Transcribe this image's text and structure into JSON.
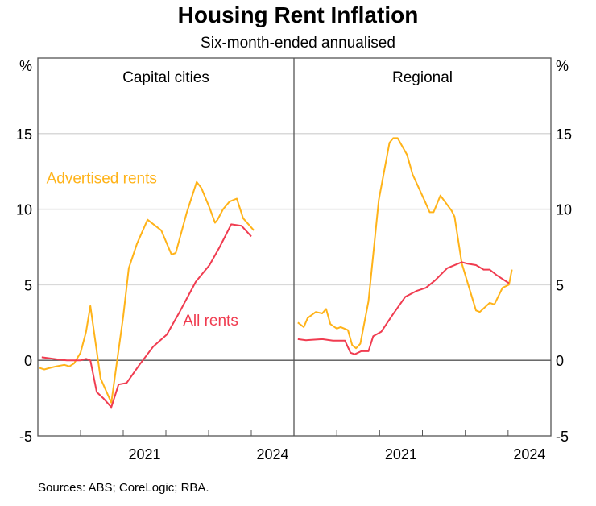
{
  "chart_data": {
    "type": "line",
    "title": "Housing Rent Inflation",
    "subtitle": "Six-month-ended annualised",
    "ylabel_left": "%",
    "ylabel_right": "%",
    "ylim": [
      -5,
      20
    ],
    "yticks": [
      -5,
      0,
      5,
      10,
      15
    ],
    "xlim": [
      2019,
      2025
    ],
    "xtick_labels": [
      {
        "label": "2021",
        "at": 2021.5
      },
      {
        "label": "2024",
        "at": 2024.5
      }
    ],
    "xtick_marks": [
      2020,
      2021,
      2022,
      2023,
      2024
    ],
    "grid": true,
    "source": "Sources: ABS; CoreLogic; RBA.",
    "colors": {
      "advertised": "#FFB319",
      "all": "#F03C50",
      "grid": "#D9D9D9",
      "axis": "#555555"
    },
    "panels": [
      {
        "title": "Capital cities",
        "annotations": [
          {
            "text": "Advertised rents",
            "series": "advertised",
            "x": 2019.2,
            "y": 11.7
          },
          {
            "text": "All rents",
            "series": "all",
            "x": 2022.4,
            "y": 2.3
          }
        ],
        "series": [
          {
            "name": "Advertised rents",
            "key": "advertised",
            "x": [
              2019.04,
              2019.15,
              2019.28,
              2019.43,
              2019.62,
              2019.74,
              2019.85,
              2020.0,
              2020.13,
              2020.23,
              2020.47,
              2020.72,
              2021.0,
              2021.13,
              2021.32,
              2021.57,
              2021.89,
              2022.13,
              2022.23,
              2022.49,
              2022.72,
              2022.83,
              2023.02,
              2023.15,
              2023.21,
              2023.34,
              2023.49,
              2023.66,
              2023.81,
              2024.06
            ],
            "y": [
              -0.5,
              -0.6,
              -0.5,
              -0.4,
              -0.3,
              -0.4,
              -0.2,
              0.5,
              1.9,
              3.6,
              -1.2,
              -2.8,
              2.9,
              6.1,
              7.7,
              9.3,
              8.6,
              7.0,
              7.1,
              9.8,
              11.8,
              11.4,
              10.1,
              9.1,
              9.3,
              10.0,
              10.5,
              10.7,
              9.4,
              8.6
            ]
          },
          {
            "name": "All rents",
            "key": "all",
            "x": [
              2019.09,
              2019.49,
              2019.68,
              2020.0,
              2020.13,
              2020.23,
              2020.38,
              2020.53,
              2020.72,
              2020.89,
              2021.08,
              2021.38,
              2021.7,
              2022.02,
              2022.32,
              2022.7,
              2023.02,
              2023.26,
              2023.53,
              2023.77,
              2024.0
            ],
            "y": [
              0.2,
              0.05,
              0,
              0,
              0.1,
              0,
              -2.1,
              -2.5,
              -3.1,
              -1.6,
              -1.5,
              -0.3,
              0.9,
              1.7,
              3.2,
              5.2,
              6.3,
              7.5,
              9.0,
              8.9,
              8.2
            ]
          }
        ]
      },
      {
        "title": "Regional",
        "annotations": [],
        "series": [
          {
            "name": "Advertised rents",
            "key": "advertised",
            "x": [
              2019.09,
              2019.23,
              2019.32,
              2019.51,
              2019.66,
              2019.75,
              2019.85,
              2020.0,
              2020.09,
              2020.26,
              2020.36,
              2020.45,
              2020.55,
              2020.74,
              2020.98,
              2021.23,
              2021.32,
              2021.42,
              2021.64,
              2021.77,
              2022.06,
              2022.17,
              2022.26,
              2022.42,
              2022.68,
              2022.75,
              2022.92,
              2023.25,
              2023.34,
              2023.57,
              2023.68,
              2023.87,
              2024.02,
              2024.09
            ],
            "y": [
              2.5,
              2.2,
              2.8,
              3.2,
              3.1,
              3.4,
              2.4,
              2.1,
              2.2,
              2.0,
              1.0,
              0.8,
              1.1,
              3.9,
              10.6,
              14.4,
              14.7,
              14.7,
              13.6,
              12.3,
              10.5,
              9.8,
              9.8,
              10.9,
              9.9,
              9.5,
              6.4,
              3.3,
              3.2,
              3.8,
              3.7,
              4.8,
              5.0,
              6.0
            ]
          },
          {
            "name": "All rents",
            "key": "all",
            "x": [
              2019.09,
              2019.28,
              2019.66,
              2019.91,
              2020.19,
              2020.32,
              2020.42,
              2020.57,
              2020.74,
              2020.85,
              2021.04,
              2021.3,
              2021.6,
              2021.87,
              2022.08,
              2022.3,
              2022.58,
              2022.92,
              2023.04,
              2023.25,
              2023.43,
              2023.57,
              2023.75,
              2024.02
            ],
            "y": [
              1.4,
              1.33,
              1.4,
              1.3,
              1.3,
              0.5,
              0.4,
              0.6,
              0.6,
              1.6,
              1.9,
              3.0,
              4.2,
              4.6,
              4.8,
              5.3,
              6.1,
              6.5,
              6.4,
              6.3,
              6.0,
              6.0,
              5.6,
              5.1
            ]
          }
        ]
      }
    ]
  }
}
